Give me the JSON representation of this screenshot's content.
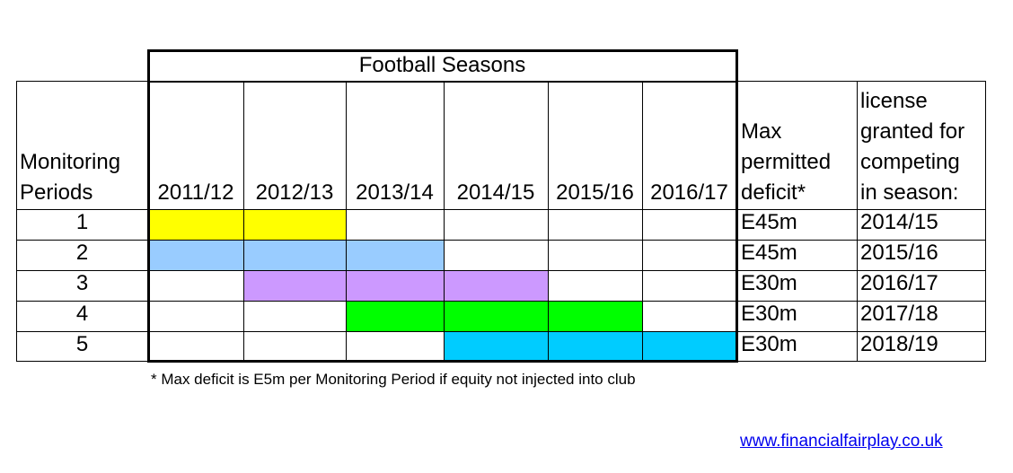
{
  "header": {
    "title": "Football Seasons"
  },
  "columns": {
    "monitoring": "Monitoring\nPeriods",
    "seasons": [
      "2011/12",
      "2012/13",
      "2013/14",
      "2014/15",
      "2015/16",
      "2016/17"
    ],
    "max_deficit": "Max\npermitted\ndeficit*",
    "license": "license\ngranted for\ncompeting\nin season:"
  },
  "rows": [
    {
      "period": "1",
      "active": [
        0,
        1
      ],
      "color": "#ffff00",
      "deficit": "E45m",
      "license": "2014/15"
    },
    {
      "period": "2",
      "active": [
        0,
        1,
        2
      ],
      "color": "#99ccff",
      "deficit": "E45m",
      "license": "2015/16"
    },
    {
      "period": "3",
      "active": [
        1,
        2,
        3
      ],
      "color": "#cc99ff",
      "deficit": "E30m",
      "license": "2016/17"
    },
    {
      "period": "4",
      "active": [
        2,
        3,
        4
      ],
      "color": "#00ff00",
      "deficit": "E30m",
      "license": "2017/18"
    },
    {
      "period": "5",
      "active": [
        3,
        4,
        5
      ],
      "color": "#00ccff",
      "deficit": "E30m",
      "license": "2018/19"
    }
  ],
  "footnote": "* Max deficit is E5m per Monitoring Period if equity not injected into club",
  "link": "www.financialfairplay.co.uk"
}
